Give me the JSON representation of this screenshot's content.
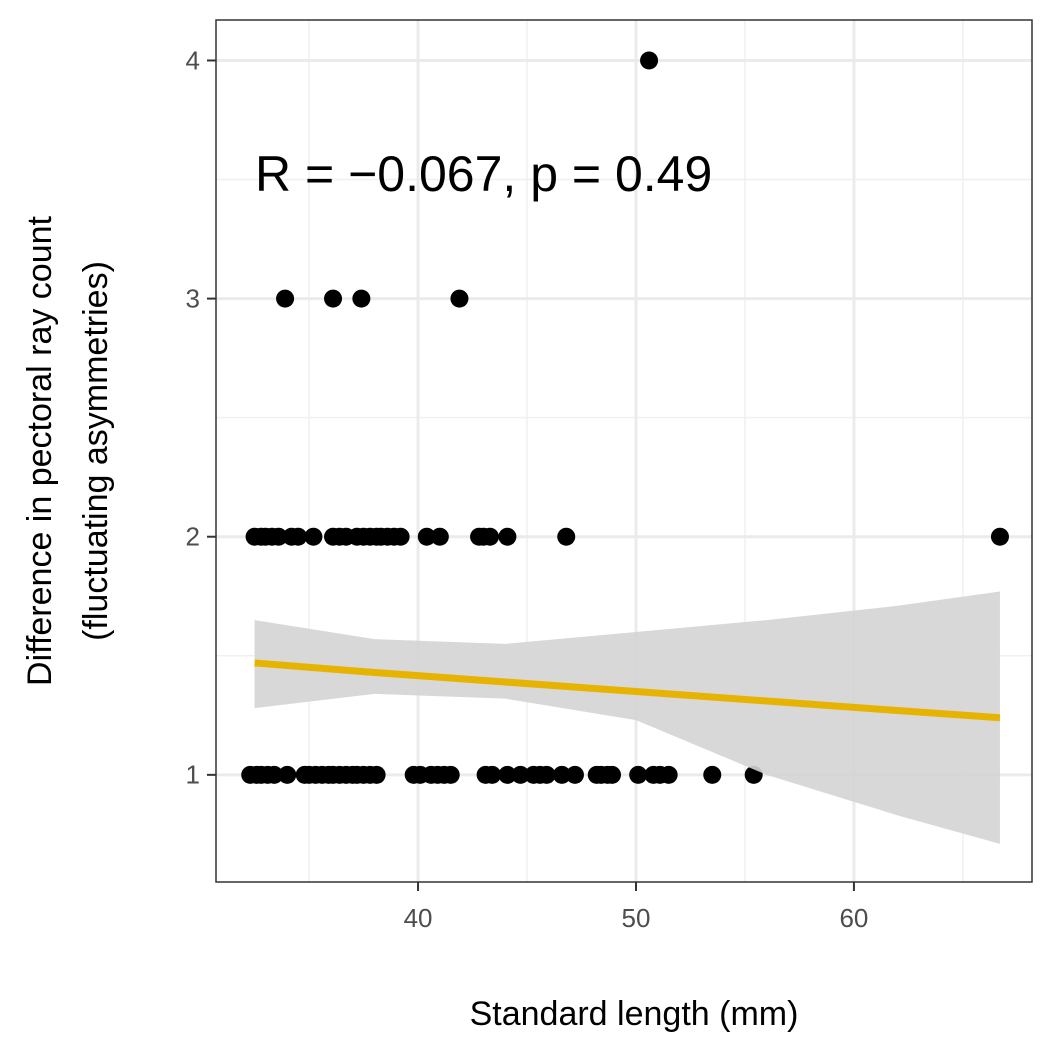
{
  "chart_data": {
    "type": "scatter",
    "xlabel": "Standard length (mm)",
    "ylabel": [
      "Difference in pectoral ray count",
      "(fluctuating asymmetries)"
    ],
    "annotation": "R = −0.067, p = 0.49",
    "xlim": [
      30.73,
      68.17
    ],
    "ylim": [
      0.55,
      4.17
    ],
    "xticks": [
      40,
      50,
      60
    ],
    "yticks": [
      1,
      2,
      3,
      4
    ],
    "grid": true,
    "series": [
      {
        "name": "observations",
        "color": "#000000",
        "x": [
          32.3,
          32.6,
          32.8,
          33.1,
          33.4,
          34.0,
          34.8,
          35.0,
          35.3,
          35.6,
          35.9,
          36.1,
          36.4,
          36.7,
          37.0,
          37.2,
          37.5,
          37.8,
          38.1,
          39.8,
          40.1,
          40.6,
          40.9,
          41.2,
          41.5,
          43.1,
          43.4,
          44.1,
          44.7,
          45.3,
          45.6,
          45.9,
          46.6,
          47.2,
          48.2,
          48.4,
          48.7,
          48.9,
          50.1,
          50.8,
          51.1,
          51.5,
          53.5,
          55.4,
          32.5,
          32.8,
          33.0,
          33.3,
          33.6,
          34.2,
          34.5,
          35.2,
          36.1,
          36.4,
          36.7,
          37.2,
          37.5,
          37.8,
          38.1,
          38.3,
          38.6,
          38.9,
          39.2,
          40.4,
          41.0,
          42.8,
          43.0,
          43.3,
          44.1,
          46.8,
          66.7,
          33.9,
          36.1,
          37.4,
          41.9,
          50.6
        ],
        "values": [
          1,
          1,
          1,
          1,
          1,
          1,
          1,
          1,
          1,
          1,
          1,
          1,
          1,
          1,
          1,
          1,
          1,
          1,
          1,
          1,
          1,
          1,
          1,
          1,
          1,
          1,
          1,
          1,
          1,
          1,
          1,
          1,
          1,
          1,
          1,
          1,
          1,
          1,
          1,
          1,
          1,
          1,
          1,
          1,
          2,
          2,
          2,
          2,
          2,
          2,
          2,
          2,
          2,
          2,
          2,
          2,
          2,
          2,
          2,
          2,
          2,
          2,
          2,
          2,
          2,
          2,
          2,
          2,
          2,
          2,
          2,
          3,
          3,
          3,
          3,
          4
        ]
      },
      {
        "name": "fit",
        "color": "#e6b400",
        "band_color": "#d4d4d4",
        "x": [
          32.5,
          38,
          44,
          50,
          56,
          62,
          66.7
        ],
        "values": [
          1.47,
          1.43,
          1.39,
          1.35,
          1.31,
          1.27,
          1.24
        ],
        "lower": [
          1.28,
          1.34,
          1.32,
          1.23,
          1.0,
          0.83,
          0.71
        ],
        "upper": [
          1.65,
          1.57,
          1.55,
          1.6,
          1.65,
          1.71,
          1.77
        ]
      }
    ]
  }
}
